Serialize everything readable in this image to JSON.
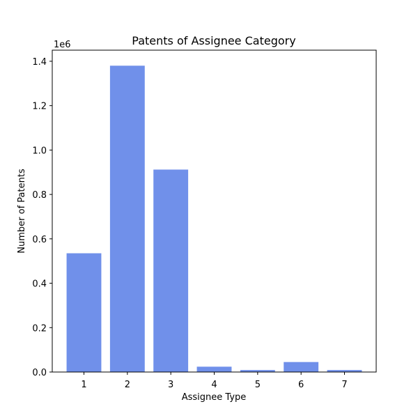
{
  "chart_data": {
    "type": "bar",
    "title": "Patents of Assignee Category",
    "xlabel": "Assignee Type",
    "ylabel": "Number of Patents",
    "y_offset_label": "1e6",
    "y_scale": 1000000,
    "categories": [
      "1",
      "2",
      "3",
      "4",
      "5",
      "6",
      "7"
    ],
    "values": [
      535000,
      1380000,
      912000,
      24000,
      9000,
      45000,
      9000
    ],
    "ylim": [
      0,
      1450000
    ],
    "yticks": [
      0,
      200000,
      400000,
      600000,
      800000,
      1000000,
      1200000,
      1400000
    ],
    "ytick_labels": [
      "0.0",
      "0.2",
      "0.4",
      "0.6",
      "0.8",
      "1.0",
      "1.2",
      "1.4"
    ],
    "bar_color": "#7090EA",
    "grid": false,
    "legend": "none"
  }
}
